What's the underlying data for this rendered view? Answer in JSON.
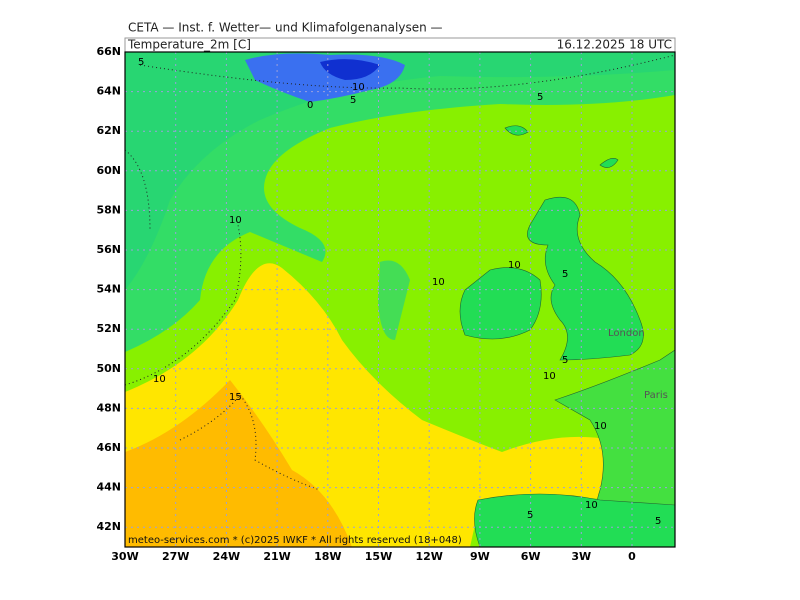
{
  "header": {
    "source": "CETA — Inst. f. Wetter— und Klimafolgenanalysen —",
    "parameter": "Temperature_2m [C]",
    "valid_time": "16.12.2025 18 UTC"
  },
  "map": {
    "lat_labels": [
      "66N",
      "64N",
      "62N",
      "60N",
      "58N",
      "56N",
      "54N",
      "52N",
      "50N",
      "48N",
      "46N",
      "44N",
      "42N"
    ],
    "lon_labels": [
      "30W",
      "27W",
      "24W",
      "21W",
      "18W",
      "15W",
      "12W",
      "9W",
      "6W",
      "3W",
      "0"
    ],
    "contour_labels": [
      "5",
      "10",
      "5",
      "5",
      "10",
      "10",
      "10",
      "5",
      "5",
      "10",
      "10",
      "15",
      "10",
      "10",
      "5",
      "5",
      "0"
    ],
    "cities": [
      "London",
      "Paris"
    ]
  },
  "footer": "meteo-services.com * (c)2025 IWKF * All rights reserved (18+048)"
}
